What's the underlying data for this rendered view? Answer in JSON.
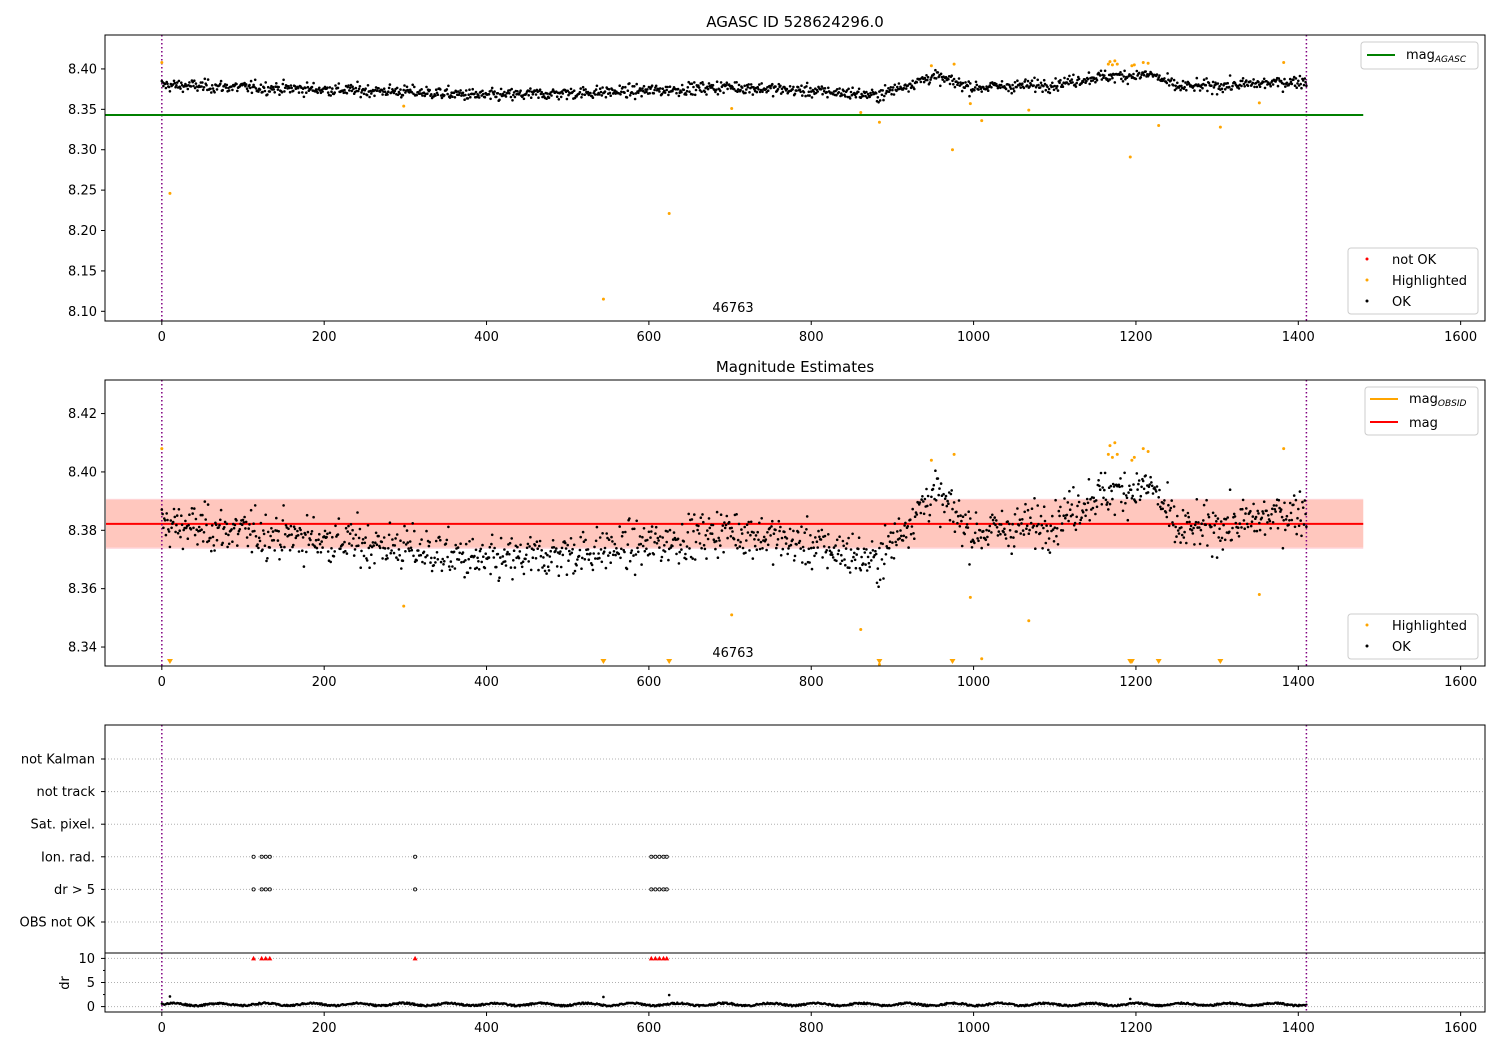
{
  "chart_data": [
    {
      "type": "scatter",
      "title": "AGASC ID 528624296.0",
      "xlabel": "",
      "ylabel": "",
      "xlim": [
        -70,
        1630
      ],
      "ylim": [
        8.088,
        8.442
      ],
      "xticks": [
        "0",
        "200",
        "400",
        "600",
        "800",
        "1000",
        "1200",
        "1400",
        "1600"
      ],
      "yticks": [
        "8.10",
        "8.15",
        "8.20",
        "8.25",
        "8.30",
        "8.35",
        "8.40"
      ],
      "annotation": "46763",
      "vlines": [
        0,
        1410
      ],
      "hline": {
        "name": "mag",
        "subscript": "AGASC",
        "y": 8.343,
        "xrange": [
          -70,
          1480
        ]
      },
      "series_base": {
        "name": "OK",
        "x_range": [
          0,
          1410
        ],
        "baseline": [
          [
            0,
            8.385
          ],
          [
            300,
            8.377
          ],
          [
            400,
            8.372
          ],
          [
            600,
            8.378
          ],
          [
            700,
            8.383
          ],
          [
            850,
            8.375
          ],
          [
            880,
            8.372
          ],
          [
            950,
            8.396
          ],
          [
            1000,
            8.382
          ],
          [
            1100,
            8.386
          ],
          [
            1150,
            8.395
          ],
          [
            1220,
            8.398
          ],
          [
            1250,
            8.383
          ],
          [
            1300,
            8.384
          ],
          [
            1410,
            8.39
          ]
        ],
        "spread": 0.012
      },
      "highlighted": {
        "name": "Highlighted",
        "points": [
          [
            0,
            8.408
          ],
          [
            10,
            8.246
          ],
          [
            298,
            8.354
          ],
          [
            544,
            8.115
          ],
          [
            625,
            8.221
          ],
          [
            702,
            8.351
          ],
          [
            861,
            8.346
          ],
          [
            884,
            8.334
          ],
          [
            948,
            8.404
          ],
          [
            974,
            8.3
          ],
          [
            976,
            8.406
          ],
          [
            996,
            8.357
          ],
          [
            1010,
            8.336
          ],
          [
            1068,
            8.349
          ],
          [
            1166,
            8.406
          ],
          [
            1168,
            8.409
          ],
          [
            1171,
            8.405
          ],
          [
            1174,
            8.41
          ],
          [
            1177,
            8.406
          ],
          [
            1193,
            8.291
          ],
          [
            1195,
            8.404
          ],
          [
            1198,
            8.405
          ],
          [
            1209,
            8.408
          ],
          [
            1215,
            8.407
          ],
          [
            1228,
            8.33
          ],
          [
            1304,
            8.328
          ],
          [
            1352,
            8.358
          ],
          [
            1382,
            8.408
          ]
        ]
      },
      "legend_top": [
        {
          "name": "mag",
          "subscript": "AGASC",
          "color": "#008000"
        }
      ],
      "legend_bottom": [
        {
          "name": "not OK",
          "color": "#ff0000"
        },
        {
          "name": "Highlighted",
          "color": "#ffa500"
        },
        {
          "name": "OK",
          "color": "#000000"
        }
      ]
    },
    {
      "type": "scatter",
      "title": "Magnitude Estimates",
      "xlabel": "",
      "ylabel": "",
      "xlim": [
        -70,
        1630
      ],
      "ylim": [
        8.3335,
        8.4315
      ],
      "xticks": [
        "0",
        "200",
        "400",
        "600",
        "800",
        "1000",
        "1200",
        "1400",
        "1600"
      ],
      "yticks": [
        "8.34",
        "8.36",
        "8.38",
        "8.40",
        "8.42"
      ],
      "annotation": "46763",
      "vlines": [
        0,
        1410
      ],
      "mag_line": 8.3822,
      "band_outer": [
        8.3736,
        8.3908
      ],
      "band_inner": [
        8.3741,
        8.3905
      ],
      "band_xrange": [
        -70,
        1480
      ],
      "clipped_markers_x": [
        10,
        544,
        625,
        884,
        974,
        1193,
        1195,
        1228,
        1304
      ],
      "legend_top": [
        {
          "name": "mag",
          "subscript": "OBSID",
          "color": "#ffa500"
        },
        {
          "name": "mag",
          "color": "#ff0000"
        }
      ],
      "legend_bottom": [
        {
          "name": "Highlighted",
          "color": "#ffa500"
        },
        {
          "name": "OK",
          "color": "#000000"
        }
      ]
    },
    {
      "type": "scatter",
      "title": "",
      "xlabel": "",
      "ylabel": "",
      "xlim": [
        -70,
        1630
      ],
      "xticks": [
        "0",
        "200",
        "400",
        "600",
        "800",
        "1000",
        "1200",
        "1400",
        "1600"
      ],
      "vlines": [
        0,
        1410
      ],
      "categories": [
        "not Kalman",
        "not track",
        "Sat. pixel.",
        "Ion. rad.",
        "dr > 5",
        "OBS not OK"
      ],
      "flag_points": {
        "Ion. rad.": [
          113,
          123,
          128,
          133,
          312,
          603,
          608,
          613,
          618,
          622
        ],
        "dr > 5": [
          113,
          123,
          128,
          133,
          312,
          603,
          608,
          613,
          618,
          622
        ]
      },
      "dr_panel": {
        "ylabel": "dr",
        "yticks": [
          "0",
          "5",
          "10"
        ],
        "ylim": [
          -0.5,
          10.5
        ],
        "capped_x": [
          113,
          123,
          128,
          133,
          312,
          603,
          608,
          613,
          618,
          622
        ],
        "outliers": [
          [
            10,
            2.1
          ],
          [
            544,
            2.0
          ],
          [
            625,
            2.4
          ],
          [
            1193,
            1.6
          ]
        ]
      }
    }
  ]
}
